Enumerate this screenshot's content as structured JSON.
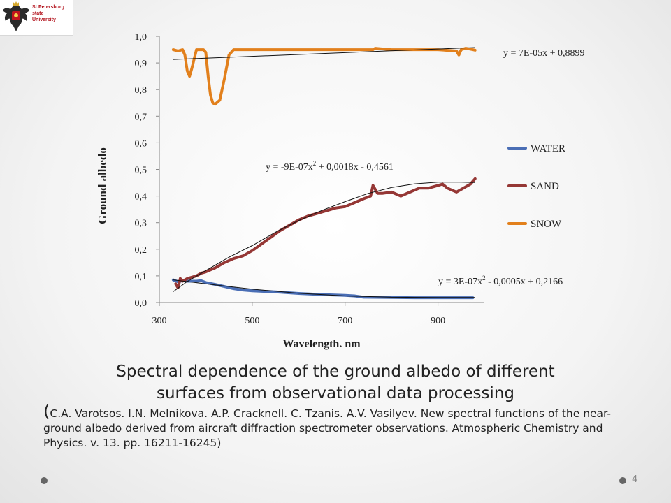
{
  "logo": {
    "lines": [
      "St.Petersburg",
      "state",
      "University"
    ]
  },
  "chart_data": {
    "type": "line",
    "xlabel": "Wavelength. nm",
    "ylabel": "Ground albedo",
    "xlim": [
      300,
      1000
    ],
    "ylim": [
      0,
      1
    ],
    "x_ticks": [
      "300",
      "500",
      "700",
      "900"
    ],
    "x_tick_values": [
      300,
      500,
      700,
      900
    ],
    "y_ticks": [
      "0,0",
      "0,1",
      "0,2",
      "0,3",
      "0,4",
      "0,5",
      "0,6",
      "0,7",
      "0,8",
      "0,9",
      "1,0"
    ],
    "y_tick_values": [
      0,
      0.1,
      0.2,
      0.3,
      0.4,
      0.5,
      0.6,
      0.7,
      0.8,
      0.9,
      1.0
    ],
    "grid": false,
    "legend_position": "right",
    "series": [
      {
        "name": "WATER",
        "color": "#4a6eb5",
        "x": [
          330,
          340,
          350,
          360,
          380,
          390,
          400,
          420,
          440,
          460,
          480,
          500,
          550,
          600,
          650,
          700,
          720,
          740,
          800,
          850,
          900,
          950,
          975
        ],
        "y": [
          0.085,
          0.078,
          0.082,
          0.08,
          0.08,
          0.082,
          0.075,
          0.068,
          0.06,
          0.052,
          0.047,
          0.044,
          0.04,
          0.034,
          0.03,
          0.027,
          0.025,
          0.02,
          0.019,
          0.018,
          0.018,
          0.018,
          0.018
        ]
      },
      {
        "name": "SAND",
        "color": "#953735",
        "x": [
          335,
          340,
          345,
          350,
          360,
          380,
          390,
          400,
          420,
          440,
          460,
          480,
          500,
          520,
          540,
          560,
          580,
          600,
          620,
          640,
          660,
          680,
          700,
          720,
          740,
          755,
          760,
          765,
          770,
          780,
          800,
          820,
          840,
          860,
          880,
          900,
          910,
          920,
          940,
          960,
          970,
          975,
          980
        ],
        "y": [
          0.07,
          0.055,
          0.09,
          0.08,
          0.09,
          0.1,
          0.11,
          0.115,
          0.13,
          0.15,
          0.165,
          0.175,
          0.195,
          0.22,
          0.245,
          0.27,
          0.29,
          0.31,
          0.325,
          0.335,
          0.345,
          0.355,
          0.36,
          0.375,
          0.39,
          0.4,
          0.44,
          0.425,
          0.41,
          0.41,
          0.415,
          0.4,
          0.415,
          0.43,
          0.43,
          0.44,
          0.445,
          0.43,
          0.415,
          0.435,
          0.445,
          0.455,
          0.465
        ]
      },
      {
        "name": "SNOW",
        "color": "#e2801c",
        "x": [
          330,
          340,
          350,
          355,
          360,
          365,
          370,
          380,
          390,
          395,
          400,
          405,
          410,
          415,
          420,
          430,
          440,
          450,
          460,
          500,
          600,
          700,
          760,
          765,
          800,
          900,
          940,
          945,
          950,
          960,
          975,
          980
        ],
        "y": [
          0.95,
          0.945,
          0.95,
          0.93,
          0.87,
          0.85,
          0.88,
          0.95,
          0.95,
          0.95,
          0.94,
          0.85,
          0.78,
          0.75,
          0.745,
          0.76,
          0.84,
          0.93,
          0.95,
          0.95,
          0.95,
          0.95,
          0.95,
          0.955,
          0.95,
          0.95,
          0.945,
          0.93,
          0.95,
          0.955,
          0.95,
          0.948
        ]
      }
    ],
    "trendlines": [
      {
        "series": "SNOW",
        "equation": "y = 7E-05x + 0,8899",
        "x": [
          330,
          980
        ],
        "y": [
          0.913,
          0.958
        ]
      },
      {
        "series": "SAND",
        "equation": "y = -9E-07x2 + 0,0018x - 0,4561",
        "x": [
          330,
          360,
          400,
          450,
          500,
          550,
          600,
          650,
          700,
          750,
          800,
          850,
          900,
          950,
          980
        ],
        "y": [
          0.041,
          0.079,
          0.12,
          0.17,
          0.214,
          0.264,
          0.308,
          0.346,
          0.379,
          0.41,
          0.432,
          0.446,
          0.452,
          0.452,
          0.451
        ]
      },
      {
        "series": "WATER",
        "equation": "y = 3E-07x2 - 0,0005x + 0,2166",
        "x": [
          330,
          400,
          500,
          600,
          700,
          800,
          900,
          980
        ],
        "y": [
          0.085,
          0.07,
          0.05,
          0.035,
          0.025,
          0.02,
          0.019,
          0.019
        ]
      }
    ],
    "annotations": [
      {
        "text": "y = 7E-05x + 0,8899"
      },
      {
        "text": "y = -9E-07x",
        "sup": "2",
        "rest": " + 0,0018x - 0,4561"
      },
      {
        "text": "y = 3E-07x",
        "sup": "2",
        "rest": " - 0,0005x + 0,2166"
      }
    ]
  },
  "caption": {
    "title_line1": "Spectral dependence of the ground albedo of different",
    "title_line2": "surfaces from observational data processing",
    "open_paren": "(",
    "reference": "C.A. Varotsos. I.N. Melnikova. A.P. Cracknell. C. Tzanis. A.V. Vasilyev. New spectral functions of the near-ground albedo derived from aircraft diffraction spectrometer observations. Atmospheric Chemistry and Physics. v. 13. pp. 16211-16245)"
  },
  "page_number": "4"
}
